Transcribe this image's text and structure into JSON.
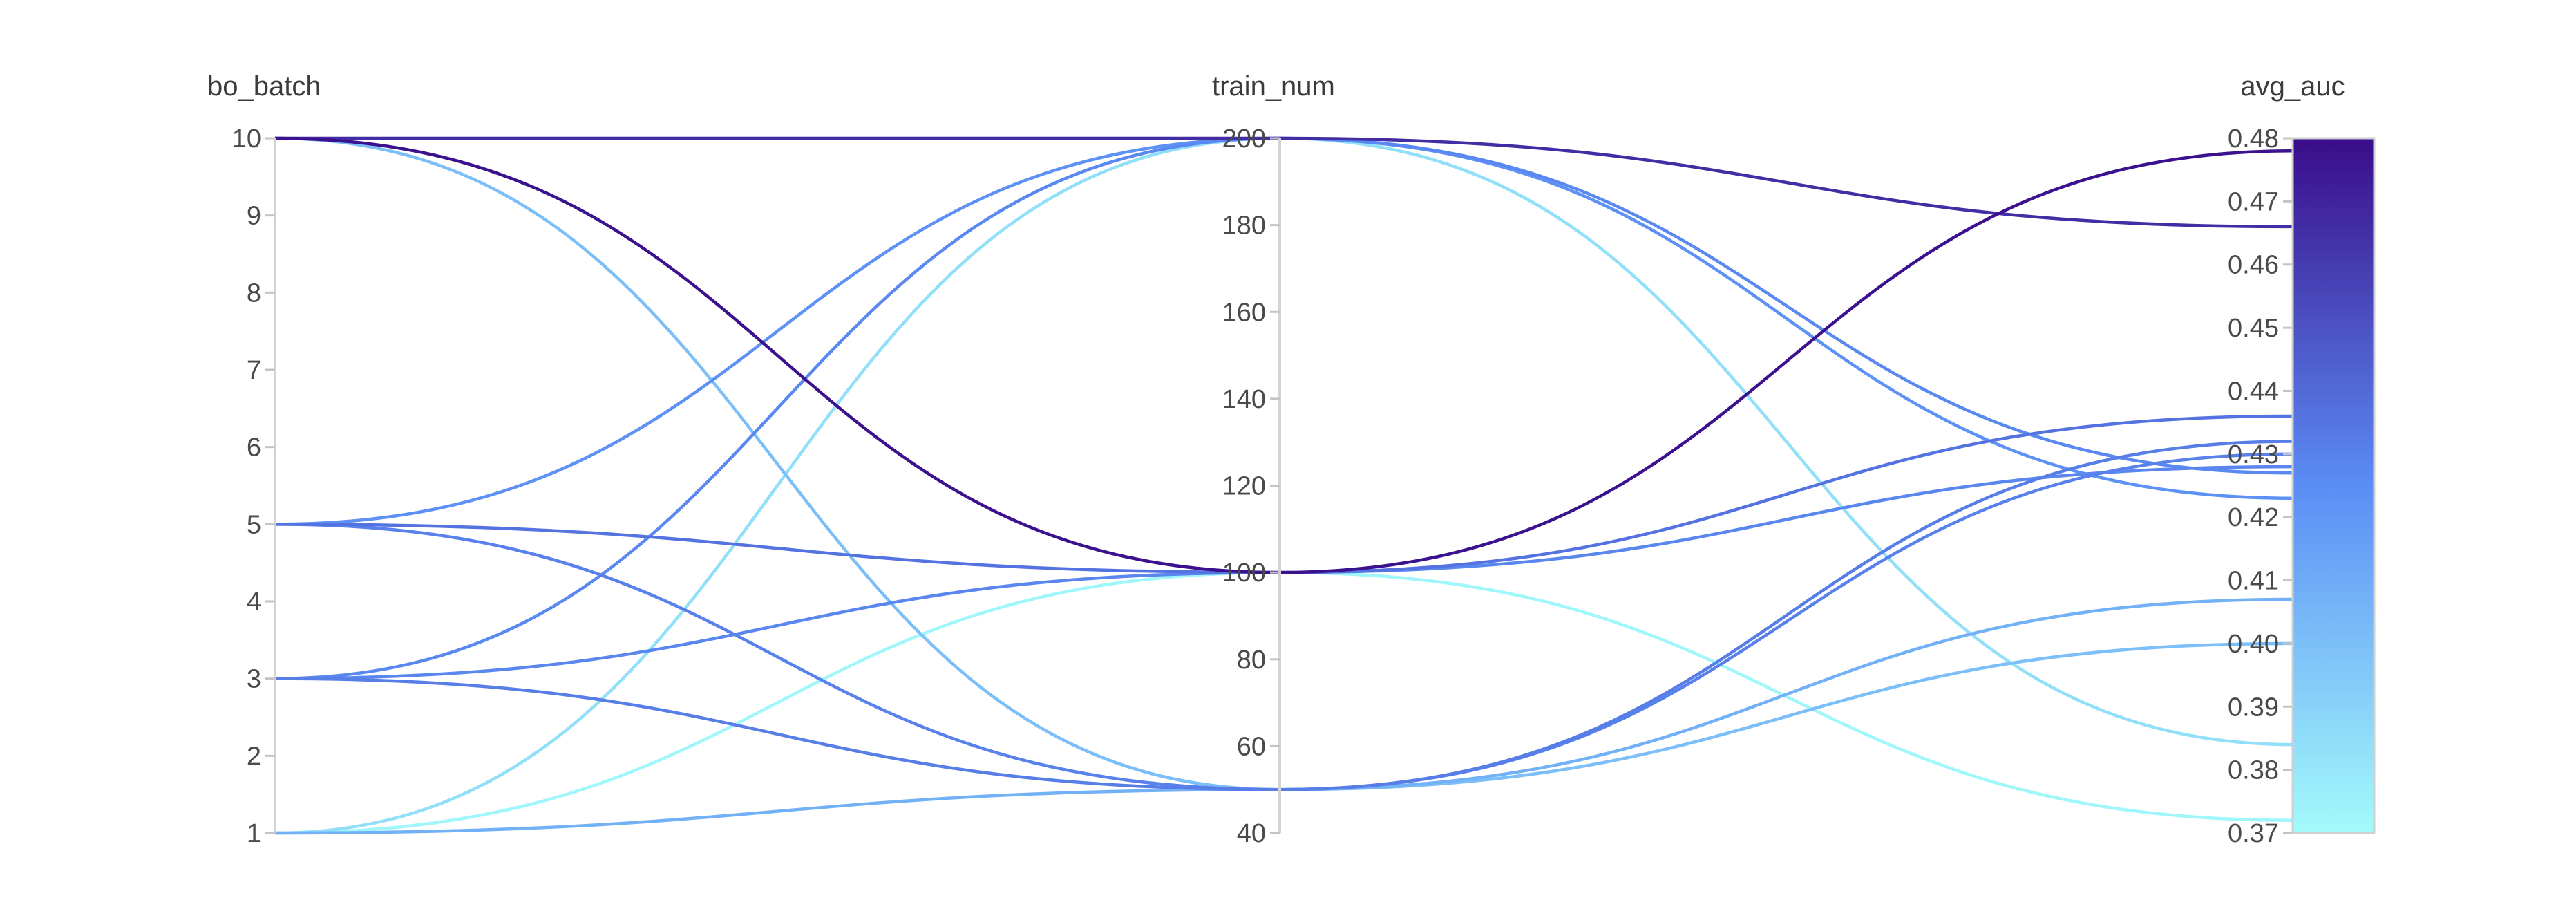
{
  "chart_data": {
    "type": "parallel-coordinates",
    "axes": [
      {
        "name": "bo_batch",
        "label": "bo_batch",
        "range": [
          1,
          10
        ],
        "ticks": [
          1,
          2,
          3,
          4,
          5,
          6,
          7,
          8,
          9,
          10
        ]
      },
      {
        "name": "train_num",
        "label": "train_num",
        "range": [
          40,
          200
        ],
        "ticks": [
          40,
          60,
          80,
          100,
          120,
          140,
          160,
          180,
          200
        ]
      },
      {
        "name": "avg_auc",
        "label": "avg_auc",
        "range": [
          0.37,
          0.48
        ],
        "ticks": [
          "0.37",
          "0.38",
          "0.39",
          "0.40",
          "0.41",
          "0.42",
          "0.43",
          "0.44",
          "0.45",
          "0.46",
          "0.47",
          "0.48"
        ]
      }
    ],
    "color_metric": "avg_auc",
    "color_scale": {
      "min": 0.37,
      "max": 0.48,
      "low_color": "#a3fbfb",
      "mid_color": "#5b8df5",
      "high_color": "#3a0c8a"
    },
    "runs": [
      {
        "bo_batch": 10,
        "train_num": 200,
        "avg_auc": 0.466
      },
      {
        "bo_batch": 10,
        "train_num": 100,
        "avg_auc": 0.478
      },
      {
        "bo_batch": 10,
        "train_num": 50,
        "avg_auc": 0.4
      },
      {
        "bo_batch": 5,
        "train_num": 200,
        "avg_auc": 0.423
      },
      {
        "bo_batch": 5,
        "train_num": 100,
        "avg_auc": 0.436
      },
      {
        "bo_batch": 5,
        "train_num": 50,
        "avg_auc": 0.43
      },
      {
        "bo_batch": 3,
        "train_num": 200,
        "avg_auc": 0.427
      },
      {
        "bo_batch": 3,
        "train_num": 100,
        "avg_auc": 0.428
      },
      {
        "bo_batch": 3,
        "train_num": 50,
        "avg_auc": 0.432
      },
      {
        "bo_batch": 1,
        "train_num": 200,
        "avg_auc": 0.384
      },
      {
        "bo_batch": 1,
        "train_num": 100,
        "avg_auc": 0.372
      },
      {
        "bo_batch": 1,
        "train_num": 50,
        "avg_auc": 0.407
      }
    ]
  }
}
